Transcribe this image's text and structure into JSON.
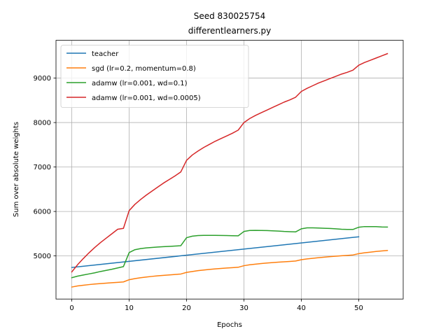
{
  "chart_data": {
    "type": "line",
    "title": "Seed 830025754",
    "subtitle": "differentlearners.py",
    "xlabel": "Epochs",
    "ylabel": "Sum over absolute weights",
    "xlim": [
      -2.75,
      57.75
    ],
    "ylim": [
      4030,
      9850
    ],
    "xticks": [
      0,
      10,
      20,
      30,
      40,
      50
    ],
    "yticks": [
      5000,
      6000,
      7000,
      8000,
      9000
    ],
    "grid": true,
    "legend_position": "upper-left",
    "series": [
      {
        "name": "teacher",
        "color": "#1f77b4",
        "x": [
          0,
          50
        ],
        "y": [
          4740,
          5430
        ]
      },
      {
        "name": "sgd (lr=0.2, momentum=0.8)",
        "color": "#ff7f0e",
        "x": [
          0,
          1,
          2,
          3,
          4,
          5,
          6,
          7,
          8,
          9,
          10,
          11,
          12,
          13,
          14,
          15,
          16,
          17,
          18,
          19,
          20,
          21,
          22,
          23,
          24,
          25,
          26,
          27,
          28,
          29,
          30,
          31,
          32,
          33,
          34,
          35,
          36,
          37,
          38,
          39,
          40,
          41,
          42,
          43,
          44,
          45,
          46,
          47,
          48,
          49,
          50,
          51,
          52,
          53,
          54,
          55
        ],
        "y": [
          4300,
          4325,
          4340,
          4355,
          4368,
          4378,
          4388,
          4397,
          4405,
          4415,
          4465,
          4490,
          4510,
          4525,
          4540,
          4553,
          4563,
          4573,
          4583,
          4593,
          4630,
          4650,
          4668,
          4683,
          4697,
          4708,
          4718,
          4728,
          4736,
          4745,
          4780,
          4800,
          4815,
          4828,
          4840,
          4850,
          4860,
          4868,
          4876,
          4885,
          4915,
          4932,
          4947,
          4960,
          4972,
          4983,
          4993,
          5003,
          5012,
          5022,
          5050,
          5070,
          5085,
          5100,
          5112,
          5122
        ]
      },
      {
        "name": "adamw (lr=0.001, wd=0.1)",
        "color": "#2ca02c",
        "x": [
          0,
          1,
          2,
          3,
          4,
          5,
          6,
          7,
          8,
          9,
          10,
          11,
          12,
          13,
          14,
          15,
          16,
          17,
          18,
          19,
          20,
          21,
          22,
          23,
          24,
          25,
          26,
          27,
          28,
          29,
          30,
          31,
          32,
          33,
          34,
          35,
          36,
          37,
          38,
          39,
          40,
          41,
          42,
          43,
          44,
          45,
          46,
          47,
          48,
          49,
          50,
          51,
          52,
          53,
          54,
          55
        ],
        "y": [
          4510,
          4545,
          4570,
          4595,
          4620,
          4650,
          4675,
          4700,
          4730,
          4760,
          5075,
          5140,
          5165,
          5180,
          5190,
          5200,
          5208,
          5215,
          5222,
          5230,
          5410,
          5445,
          5458,
          5462,
          5463,
          5462,
          5460,
          5458,
          5455,
          5452,
          5550,
          5572,
          5575,
          5573,
          5570,
          5565,
          5558,
          5550,
          5545,
          5540,
          5610,
          5632,
          5632,
          5628,
          5622,
          5617,
          5610,
          5600,
          5597,
          5595,
          5645,
          5660,
          5660,
          5658,
          5652,
          5650
        ]
      },
      {
        "name": "adamw (lr=0.001, wd=0.0005)",
        "color": "#d62728",
        "x": [
          0,
          1,
          2,
          3,
          4,
          5,
          6,
          7,
          8,
          9,
          10,
          11,
          12,
          13,
          14,
          15,
          16,
          17,
          18,
          19,
          20,
          21,
          22,
          23,
          24,
          25,
          26,
          27,
          28,
          29,
          30,
          31,
          32,
          33,
          34,
          35,
          36,
          37,
          38,
          39,
          40,
          41,
          42,
          43,
          44,
          45,
          46,
          47,
          48,
          49,
          50,
          51,
          52,
          53,
          54,
          55
        ],
        "y": [
          4640,
          4800,
          4940,
          5070,
          5190,
          5300,
          5400,
          5500,
          5600,
          5620,
          6020,
          6160,
          6270,
          6370,
          6460,
          6550,
          6640,
          6720,
          6800,
          6890,
          7150,
          7270,
          7360,
          7440,
          7510,
          7580,
          7640,
          7700,
          7760,
          7830,
          8000,
          8090,
          8160,
          8220,
          8280,
          8340,
          8400,
          8460,
          8510,
          8570,
          8700,
          8770,
          8830,
          8890,
          8940,
          8990,
          9040,
          9090,
          9130,
          9180,
          9290,
          9350,
          9400,
          9450,
          9500,
          9550
        ]
      }
    ]
  }
}
